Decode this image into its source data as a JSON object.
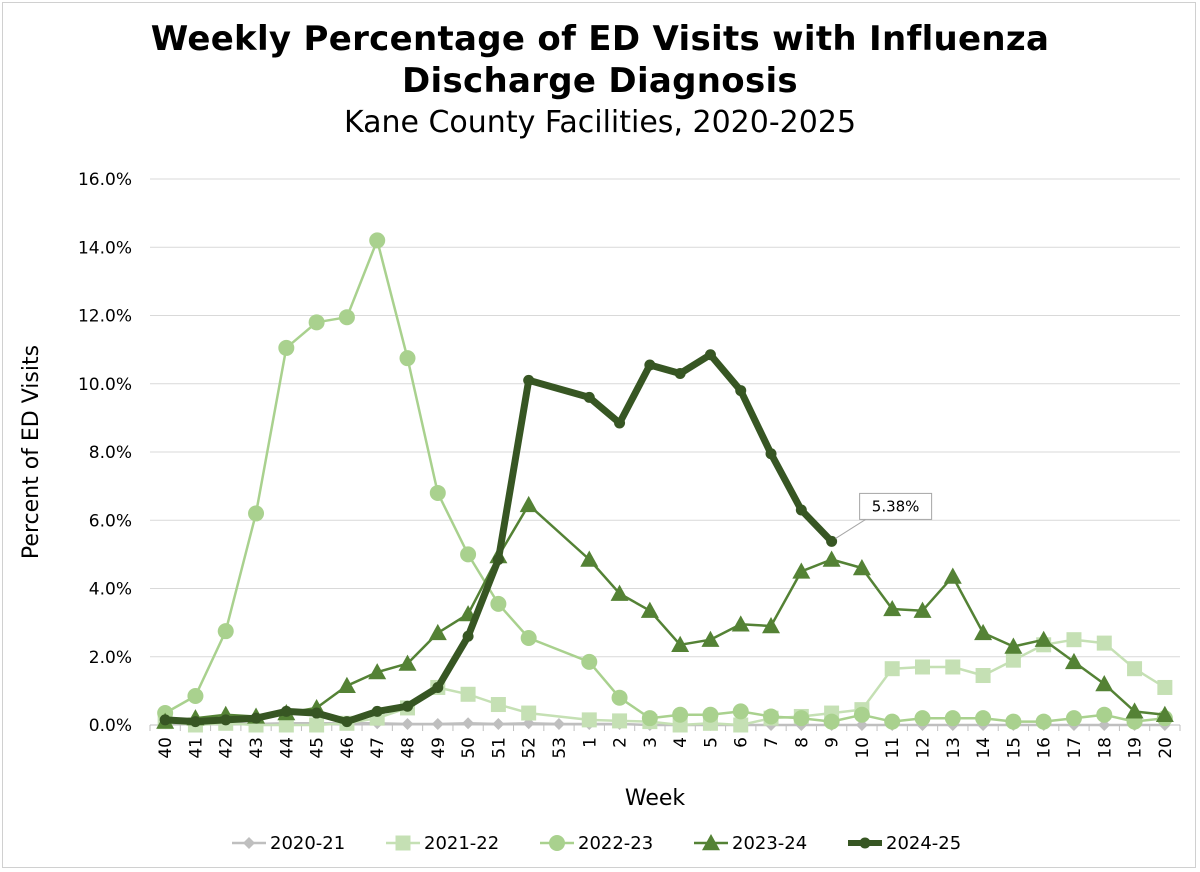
{
  "title": "Weekly Percentage of ED Visits with Influenza Discharge Diagnosis",
  "title_line1": "Weekly Percentage of ED Visits with Influenza",
  "title_line2": "Discharge Diagnosis",
  "subtitle": "Kane County Facilities, 2020-2025",
  "chart_data": {
    "type": "line",
    "title": "Weekly Percentage of ED Visits with Influenza Discharge Diagnosis",
    "subtitle": "Kane County Facilities, 2020-2025",
    "xlabel": "Week",
    "ylabel": "Percent of ED Visits",
    "ylim": [
      0,
      16
    ],
    "y_ticks": [
      0,
      2,
      4,
      6,
      8,
      10,
      12,
      14,
      16
    ],
    "y_tick_labels": [
      "0.0%",
      "2.0%",
      "4.0%",
      "6.0%",
      "8.0%",
      "10.0%",
      "12.0%",
      "14.0%",
      "16.0%"
    ],
    "grid": "horizontal",
    "legend": "bottom",
    "categories": [
      "40",
      "41",
      "42",
      "43",
      "44",
      "45",
      "46",
      "47",
      "48",
      "49",
      "50",
      "51",
      "52",
      "53",
      "1",
      "2",
      "3",
      "4",
      "5",
      "6",
      "7",
      "8",
      "9",
      "10",
      "11",
      "12",
      "13",
      "14",
      "15",
      "16",
      "17",
      "18",
      "19",
      "20"
    ],
    "series": [
      {
        "name": "2020-21",
        "color": "#bfbfbf",
        "marker": "diamond",
        "values": [
          0.05,
          0.03,
          0.05,
          0.03,
          0.05,
          0.05,
          0.05,
          0.05,
          0.03,
          0.03,
          0.05,
          0.03,
          0.05,
          0.03,
          0.03,
          0.03,
          0.0,
          0.0,
          0.0,
          0.0,
          0.0,
          0.0,
          0.0,
          0.0,
          0.0,
          0.0,
          0.0,
          0.0,
          0.0,
          0.0,
          0.0,
          0.0,
          0.0,
          0.0
        ]
      },
      {
        "name": "2021-22",
        "color": "#c5e0b4",
        "marker": "square",
        "values": [
          0.1,
          0.0,
          0.05,
          0.0,
          0.0,
          0.0,
          0.05,
          0.2,
          0.5,
          1.1,
          0.9,
          0.6,
          0.35,
          null,
          0.15,
          0.12,
          0.1,
          0.0,
          0.05,
          0.0,
          0.2,
          0.25,
          0.35,
          0.45,
          1.65,
          1.7,
          1.7,
          1.45,
          1.9,
          2.35,
          2.5,
          2.4,
          1.65,
          1.1
        ]
      },
      {
        "name": "2022-23",
        "color": "#a9d18e",
        "marker": "circle",
        "values": [
          0.35,
          0.85,
          2.75,
          6.2,
          11.05,
          11.8,
          11.95,
          14.2,
          10.75,
          6.8,
          5.0,
          3.55,
          2.55,
          null,
          1.85,
          0.8,
          0.2,
          0.3,
          0.3,
          0.4,
          0.25,
          0.2,
          0.1,
          0.3,
          0.1,
          0.2,
          0.2,
          0.2,
          0.1,
          0.1,
          0.2,
          0.3,
          0.1,
          0.2
        ]
      },
      {
        "name": "2023-24",
        "color": "#548235",
        "marker": "triangle",
        "values": [
          0.1,
          0.2,
          0.3,
          0.25,
          0.35,
          0.5,
          1.15,
          1.55,
          1.8,
          2.7,
          3.25,
          4.95,
          6.45,
          null,
          4.85,
          3.85,
          3.35,
          2.35,
          2.5,
          2.95,
          2.9,
          4.5,
          4.85,
          4.6,
          3.4,
          3.35,
          4.35,
          2.7,
          2.3,
          2.5,
          1.85,
          1.2,
          0.4,
          0.3
        ]
      },
      {
        "name": "2024-25",
        "color": "#375623",
        "marker": "circle",
        "values": [
          0.15,
          0.1,
          0.15,
          0.2,
          0.4,
          0.35,
          0.1,
          0.4,
          0.55,
          1.1,
          2.6,
          4.85,
          10.1,
          null,
          9.6,
          8.85,
          10.55,
          10.3,
          10.85,
          9.8,
          7.95,
          6.3,
          5.38,
          null,
          null,
          null,
          null,
          null,
          null,
          null,
          null,
          null,
          null,
          null
        ]
      }
    ],
    "annotation": "5.38%"
  }
}
